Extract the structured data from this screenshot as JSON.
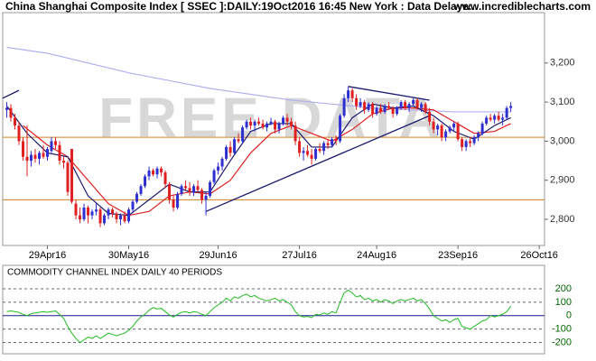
{
  "chart_data": [
    {
      "type": "candlestick",
      "title": "China Shanghai Composite Index [ SSEC ]:DAILY:19Oct2016 16:45 New York : Data Delaye...",
      "source": "www.incrediblecharts.com",
      "watermark": "FREE DATA",
      "up_color": "#2f2fcf",
      "down_color": "#e02020",
      "candles": [
        [
          3080,
          3100,
          3060,
          3085
        ],
        [
          3085,
          3095,
          3050,
          3060
        ],
        [
          3060,
          3070,
          3030,
          3040
        ],
        [
          3040,
          3050,
          2990,
          3000
        ],
        [
          3000,
          3010,
          2950,
          2960
        ],
        [
          2960,
          3040,
          2910,
          2950
        ],
        [
          2950,
          2975,
          2935,
          2965
        ],
        [
          2965,
          2980,
          2945,
          2955
        ],
        [
          2955,
          2975,
          2940,
          2970
        ],
        [
          2970,
          2990,
          2955,
          2960
        ],
        [
          2960,
          2985,
          2950,
          2980
        ],
        [
          2975,
          3010,
          2970,
          3000
        ],
        [
          3000,
          3010,
          2980,
          2990
        ],
        [
          2990,
          3000,
          2940,
          2950
        ],
        [
          2950,
          2960,
          2930,
          2945
        ],
        [
          2945,
          2950,
          2860,
          2870
        ],
        [
          2980,
          2980,
          2840,
          2845
        ],
        [
          2840,
          2850,
          2800,
          2810
        ],
        [
          2810,
          2830,
          2790,
          2800
        ],
        [
          2800,
          2840,
          2795,
          2830
        ],
        [
          2830,
          2835,
          2790,
          2810
        ],
        [
          2810,
          2825,
          2800,
          2820
        ],
        [
          2820,
          2840,
          2810,
          2825
        ],
        [
          2825,
          2830,
          2780,
          2790
        ],
        [
          2790,
          2815,
          2785,
          2810
        ],
        [
          2810,
          2830,
          2800,
          2825
        ],
        [
          2825,
          2830,
          2805,
          2815
        ],
        [
          2815,
          2820,
          2790,
          2800
        ],
        [
          2800,
          2815,
          2785,
          2810
        ],
        [
          2810,
          2820,
          2790,
          2795
        ],
        [
          2795,
          2830,
          2790,
          2825
        ],
        [
          2825,
          2850,
          2815,
          2845
        ],
        [
          2845,
          2870,
          2840,
          2865
        ],
        [
          2865,
          2890,
          2860,
          2885
        ],
        [
          2885,
          2915,
          2880,
          2910
        ],
        [
          2910,
          2935,
          2900,
          2925
        ],
        [
          2925,
          2930,
          2910,
          2915
        ],
        [
          2915,
          2935,
          2905,
          2930
        ],
        [
          2930,
          2935,
          2910,
          2920
        ],
        [
          2920,
          2925,
          2880,
          2890
        ],
        [
          2890,
          2895,
          2840,
          2850
        ],
        [
          2850,
          2860,
          2820,
          2830
        ],
        [
          2830,
          2870,
          2825,
          2865
        ],
        [
          2865,
          2890,
          2860,
          2885
        ],
        [
          2885,
          2900,
          2875,
          2880
        ],
        [
          2880,
          2895,
          2860,
          2870
        ],
        [
          2870,
          2890,
          2860,
          2885
        ],
        [
          2885,
          2900,
          2870,
          2875
        ],
        [
          2875,
          2880,
          2840,
          2850
        ],
        [
          2850,
          2870,
          2810,
          2860
        ],
        [
          2860,
          2900,
          2855,
          2895
        ],
        [
          2895,
          2930,
          2890,
          2925
        ],
        [
          2925,
          2945,
          2915,
          2935
        ],
        [
          2935,
          2960,
          2925,
          2955
        ],
        [
          2955,
          2990,
          2950,
          2985
        ],
        [
          2985,
          3000,
          2960,
          2970
        ],
        [
          2970,
          3010,
          2965,
          3005
        ],
        [
          3005,
          3020,
          2995,
          3000
        ],
        [
          3000,
          3040,
          2995,
          3035
        ],
        [
          3035,
          3055,
          3030,
          3050
        ],
        [
          3050,
          3060,
          3030,
          3040
        ],
        [
          3040,
          3055,
          3025,
          3050
        ],
        [
          3050,
          3060,
          3040,
          3045
        ],
        [
          3045,
          3055,
          3030,
          3035
        ],
        [
          3035,
          3050,
          3025,
          3045
        ],
        [
          3045,
          3060,
          3040,
          3050
        ],
        [
          3050,
          3055,
          3020,
          3030
        ],
        [
          3030,
          3050,
          3020,
          3045
        ],
        [
          3045,
          3065,
          3040,
          3060
        ],
        [
          3060,
          3070,
          3040,
          3050
        ],
        [
          3050,
          3060,
          3030,
          3040
        ],
        [
          3040,
          3050,
          2990,
          3000
        ],
        [
          3000,
          3010,
          2960,
          2970
        ],
        [
          2970,
          2985,
          2950,
          2975
        ],
        [
          2975,
          2990,
          2960,
          2965
        ],
        [
          2965,
          2980,
          2940,
          2955
        ],
        [
          2955,
          2985,
          2950,
          2980
        ],
        [
          2980,
          2995,
          2970,
          2975
        ],
        [
          2975,
          3000,
          2965,
          2995
        ],
        [
          2995,
          3005,
          2980,
          2990
        ],
        [
          2990,
          3010,
          2985,
          3005
        ],
        [
          3005,
          3015,
          2990,
          3000
        ],
        [
          3000,
          3070,
          2995,
          3065
        ],
        [
          3065,
          3120,
          3060,
          3110
        ],
        [
          3110,
          3140,
          3100,
          3130
        ],
        [
          3130,
          3135,
          3100,
          3110
        ],
        [
          3110,
          3120,
          3080,
          3090
        ],
        [
          3090,
          3110,
          3085,
          3100
        ],
        [
          3100,
          3105,
          3070,
          3080
        ],
        [
          3080,
          3100,
          3075,
          3095
        ],
        [
          3095,
          3100,
          3060,
          3070
        ],
        [
          3070,
          3090,
          3065,
          3085
        ],
        [
          3085,
          3095,
          3070,
          3075
        ],
        [
          3075,
          3095,
          3070,
          3090
        ],
        [
          3090,
          3100,
          3080,
          3085
        ],
        [
          3085,
          3090,
          3060,
          3070
        ],
        [
          3070,
          3090,
          3065,
          3085
        ],
        [
          3085,
          3105,
          3080,
          3100
        ],
        [
          3100,
          3105,
          3080,
          3085
        ],
        [
          3085,
          3100,
          3075,
          3095
        ],
        [
          3095,
          3110,
          3090,
          3105
        ],
        [
          3105,
          3110,
          3080,
          3085
        ],
        [
          3085,
          3100,
          3075,
          3095
        ],
        [
          3095,
          3100,
          3070,
          3075
        ],
        [
          3075,
          3085,
          3040,
          3050
        ],
        [
          3050,
          3060,
          3020,
          3030
        ],
        [
          3030,
          3045,
          3015,
          3040
        ],
        [
          3040,
          3045,
          3000,
          3010
        ],
        [
          3010,
          3030,
          3000,
          3025
        ],
        [
          3025,
          3040,
          3020,
          3035
        ],
        [
          3035,
          3050,
          3025,
          3045
        ],
        [
          3045,
          3050,
          3000,
          3005
        ],
        [
          3005,
          3010,
          2975,
          2985
        ],
        [
          2985,
          3005,
          2975,
          3000
        ],
        [
          3000,
          3010,
          2985,
          2995
        ],
        [
          2995,
          3015,
          2990,
          3010
        ],
        [
          3010,
          3025,
          3000,
          3020
        ],
        [
          3020,
          3050,
          3015,
          3045
        ],
        [
          3045,
          3065,
          3040,
          3060
        ],
        [
          3060,
          3070,
          3050,
          3055
        ],
        [
          3055,
          3070,
          3045,
          3065
        ],
        [
          3065,
          3075,
          3050,
          3055
        ],
        [
          3055,
          3070,
          3040,
          3060
        ],
        [
          3060,
          3090,
          3055,
          3085
        ],
        [
          3085,
          3100,
          3075,
          3090
        ]
      ],
      "series": [
        {
          "color": "#b0b0f0",
          "x": [
            0,
            10,
            20,
            30,
            40,
            50,
            60,
            70,
            80,
            90,
            100,
            110,
            124
          ],
          "values": [
            3240,
            3225,
            3200,
            3175,
            3155,
            3135,
            3120,
            3105,
            3095,
            3085,
            3080,
            3075,
            3075
          ]
        },
        {
          "color": "#e02020",
          "x": [
            4,
            10,
            15,
            20,
            25,
            30,
            35,
            40,
            45,
            50,
            55,
            60,
            65,
            70,
            75,
            80,
            85,
            90,
            95,
            100,
            105,
            110,
            115,
            120,
            124
          ],
          "values": [
            3040,
            2990,
            2960,
            2900,
            2840,
            2810,
            2820,
            2860,
            2870,
            2865,
            2900,
            2970,
            3020,
            3040,
            3020,
            3000,
            3030,
            3070,
            3085,
            3085,
            3080,
            3050,
            3020,
            3025,
            3045
          ]
        },
        {
          "color": "#1a1a6e",
          "x": [
            0,
            5,
            10,
            15,
            20,
            25,
            30,
            35,
            40,
            45,
            50,
            55,
            60,
            65,
            70,
            75,
            80,
            85,
            90,
            95,
            100,
            105,
            110,
            115,
            120,
            124
          ],
          "values": [
            3090,
            3020,
            2970,
            2960,
            2860,
            2815,
            2810,
            2850,
            2890,
            2870,
            2870,
            2950,
            3025,
            3045,
            3045,
            2985,
            2985,
            3060,
            3095,
            3085,
            3090,
            3065,
            3025,
            3005,
            3040,
            3060
          ]
        }
      ],
      "hlines": [
        {
          "value": 3010,
          "color": "#d08020"
        },
        {
          "value": 2850,
          "color": "#d08020"
        }
      ],
      "trend_lines": [
        {
          "color": "#1a1a6e",
          "x": [
            49,
            104
          ],
          "values": [
            2820,
            3065
          ]
        },
        {
          "color": "#1a1a6e",
          "x": [
            84,
            104
          ],
          "values": [
            3140,
            3105
          ]
        },
        {
          "color": "#1a1a6e",
          "x": [
            -1,
            3
          ],
          "values": [
            3110,
            3130
          ]
        }
      ],
      "xlim": [
        -1,
        132.3
      ],
      "xticks": [
        {
          "value": 10,
          "label": "29Apr16"
        },
        {
          "value": 30,
          "label": "30May16"
        },
        {
          "value": 52,
          "label": "29Jun16"
        },
        {
          "value": 72,
          "label": "27Jul16"
        },
        {
          "value": 91,
          "label": "24Aug16"
        },
        {
          "value": 111,
          "label": "23Sep16"
        },
        {
          "value": 131,
          "label": "26Oct16"
        }
      ],
      "ylim": [
        2733,
        3329
      ],
      "yticks": [
        {
          "value": 2800,
          "label": "2,800"
        },
        {
          "value": 2900,
          "label": "2,900"
        },
        {
          "value": 3000,
          "label": "3,000"
        },
        {
          "value": 3100,
          "label": "3,100"
        },
        {
          "value": 3200,
          "label": "3,200"
        }
      ]
    },
    {
      "type": "line",
      "title": "COMMODITY CHANNEL INDEX DAILY 40 PERIODS",
      "color": "#22bb22",
      "values": [
        30,
        35,
        30,
        25,
        10,
        0,
        15,
        20,
        25,
        30,
        25,
        30,
        35,
        10,
        -20,
        -80,
        -130,
        -170,
        -200,
        -180,
        -160,
        -170,
        -150,
        -170,
        -150,
        -130,
        -140,
        -150,
        -140,
        -130,
        -110,
        -80,
        -40,
        -10,
        10,
        40,
        60,
        50,
        55,
        30,
        5,
        -10,
        10,
        25,
        30,
        20,
        30,
        25,
        10,
        0,
        30,
        60,
        80,
        100,
        130,
        110,
        140,
        130,
        150,
        160,
        140,
        150,
        130,
        120,
        110,
        120,
        130,
        110,
        120,
        100,
        80,
        30,
        0,
        -10,
        -5,
        -15,
        10,
        5,
        20,
        10,
        30,
        20,
        100,
        170,
        190,
        170,
        140,
        150,
        120,
        130,
        110,
        120,
        100,
        120,
        110,
        90,
        110,
        120,
        110,
        120,
        130,
        110,
        120,
        90,
        50,
        0,
        -20,
        -40,
        -30,
        -50,
        -30,
        -20,
        -80,
        -90,
        -100,
        -80,
        -60,
        -40,
        -30,
        0,
        -10,
        0,
        10,
        30,
        70
      ],
      "ylim": [
        -284,
        375
      ],
      "yticks": [
        200,
        100,
        0,
        -100,
        -200
      ]
    }
  ]
}
